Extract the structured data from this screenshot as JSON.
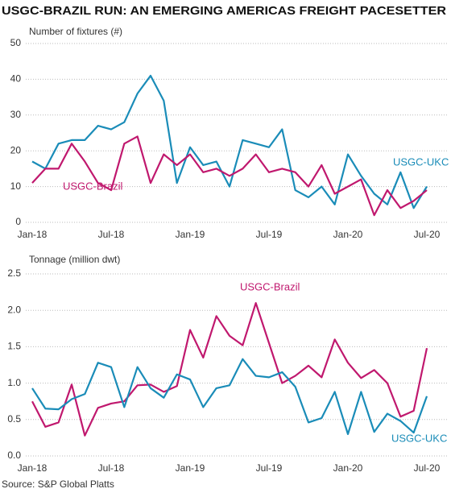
{
  "title": "USGC-BRAZIL RUN: AN EMERGING AMERICAS FREIGHT PACESETTER",
  "source": "Source: S&P Global Platts",
  "chart_data": [
    {
      "type": "line",
      "subtitle": "Number of fixtures (#)",
      "categories": [
        "Jan-18",
        null,
        null,
        null,
        null,
        null,
        "Jul-18",
        null,
        null,
        null,
        null,
        null,
        "Jan-19",
        null,
        null,
        null,
        null,
        null,
        "Jul-19",
        null,
        null,
        null,
        null,
        null,
        "Jan-20",
        null,
        null,
        null,
        null,
        null,
        "Jul-20"
      ],
      "series": [
        {
          "name": "USGC-UKC",
          "color": "#1a8cb8",
          "values": [
            17,
            15,
            22,
            23,
            23,
            27,
            26,
            28,
            36,
            41,
            34,
            11,
            21,
            16,
            17,
            10,
            23,
            22,
            21,
            26,
            9,
            7,
            10,
            5,
            19,
            13,
            8,
            5,
            14,
            4,
            10
          ]
        },
        {
          "name": "USGC-Brazil",
          "color": "#c0186e",
          "values": [
            11,
            15,
            15,
            22,
            17,
            11,
            9,
            22,
            24,
            11,
            19,
            16,
            19,
            14,
            15,
            13,
            15,
            19,
            14,
            15,
            14,
            10,
            16,
            8,
            10,
            12,
            2,
            9,
            4,
            6,
            9
          ]
        }
      ],
      "ylim": [
        0,
        50
      ],
      "yticks": [
        0,
        10,
        20,
        30,
        40,
        50
      ],
      "grid": true
    },
    {
      "type": "line",
      "subtitle": "Tonnage (million dwt)",
      "categories": [
        "Jan-18",
        null,
        null,
        null,
        null,
        null,
        "Jul-18",
        null,
        null,
        null,
        null,
        null,
        "Jan-19",
        null,
        null,
        null,
        null,
        null,
        "Jul-19",
        null,
        null,
        null,
        null,
        null,
        "Jan-20",
        null,
        null,
        null,
        null,
        null,
        "Jul-20"
      ],
      "series": [
        {
          "name": "USGC-Brazil",
          "color": "#c0186e",
          "values": [
            0.75,
            0.4,
            0.46,
            0.98,
            0.28,
            0.66,
            0.72,
            0.75,
            0.97,
            0.98,
            0.88,
            0.96,
            1.73,
            1.35,
            1.92,
            1.65,
            1.52,
            2.1,
            1.55,
            1.0,
            1.1,
            1.24,
            1.08,
            1.6,
            1.28,
            1.07,
            1.18,
            1.0,
            0.54,
            0.62,
            1.48
          ]
        },
        {
          "name": "USGC-UKC",
          "color": "#1a8cb8",
          "values": [
            0.93,
            0.65,
            0.64,
            0.78,
            0.85,
            1.28,
            1.22,
            0.67,
            1.22,
            0.93,
            0.8,
            1.12,
            1.05,
            0.67,
            0.93,
            0.97,
            1.33,
            1.1,
            1.08,
            1.15,
            0.95,
            0.46,
            0.52,
            0.88,
            0.3,
            0.88,
            0.33,
            0.58,
            0.48,
            0.32,
            0.82
          ]
        }
      ],
      "ylim": [
        0,
        2.5
      ],
      "yticks": [
        {
          "value": 0,
          "label": "0.0"
        },
        0.5,
        {
          "value": 1,
          "label": "1.0"
        },
        1.5,
        {
          "value": 2,
          "label": "2.0"
        },
        2.5
      ],
      "grid": true
    }
  ]
}
